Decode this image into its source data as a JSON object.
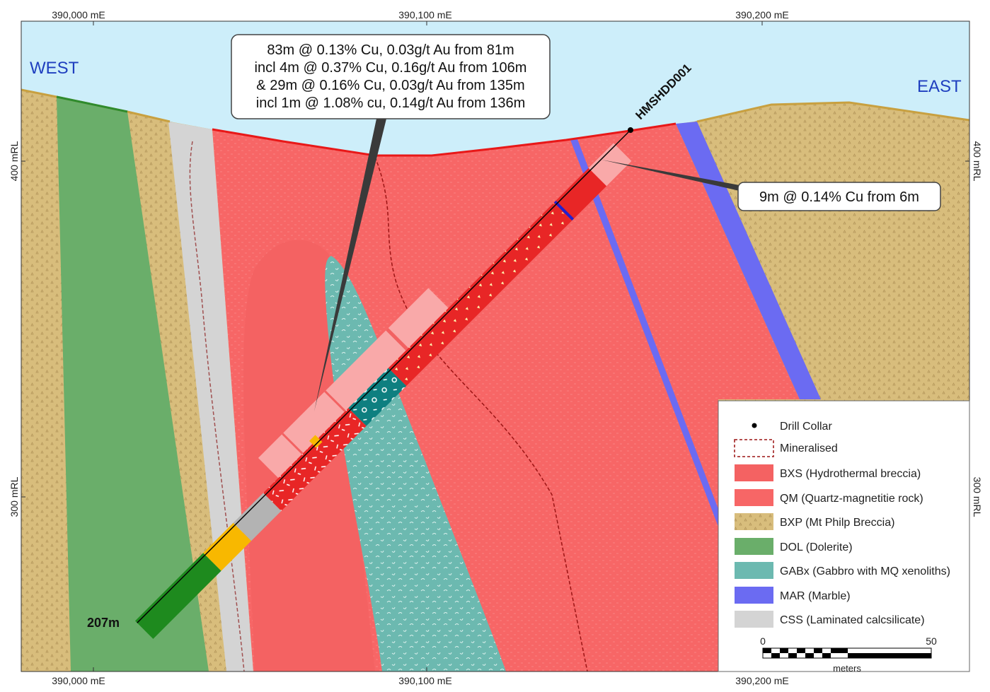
{
  "axes": {
    "easting_top": [
      "390,000 mE",
      "390,100 mE",
      "390,200 mE"
    ],
    "easting_bottom": [
      "390,000 mE",
      "390,100 mE",
      "390,200 mE"
    ],
    "rl_left": [
      "400 mRL",
      "300 mRL"
    ],
    "rl_right": [
      "400 mRL",
      "300 mRL"
    ]
  },
  "labels": {
    "west": "WEST",
    "east": "EAST",
    "hole": "HMSHDD001",
    "depth": "207m"
  },
  "callouts": [
    {
      "lines": [
        "83m @ 0.13% Cu, 0.03g/t Au from 81m",
        "incl 4m @ 0.37% Cu, 0.16g/t Au from 106m",
        "& 29m @ 0.16% Cu, 0.03g/t Au from 135m",
        "incl 1m @ 1.08% cu, 0.14g/t Au from 136m"
      ]
    },
    {
      "lines": [
        "9m @ 0.14% Cu from 6m"
      ]
    }
  ],
  "legend": {
    "items": [
      "Drill Collar",
      "Mineralised",
      "BXS (Hydrothermal breccia)",
      "QM (Quartz-magnetitie rock)",
      "BXP (Mt Philp Breccia)",
      "DOL (Dolerite)",
      "GABx (Gabbro with MQ xenoliths)",
      "MAR (Marble)",
      "CSS (Laminated calcsilicate)"
    ],
    "scale": {
      "start": "0",
      "end": "50",
      "unit": "meters"
    }
  }
}
